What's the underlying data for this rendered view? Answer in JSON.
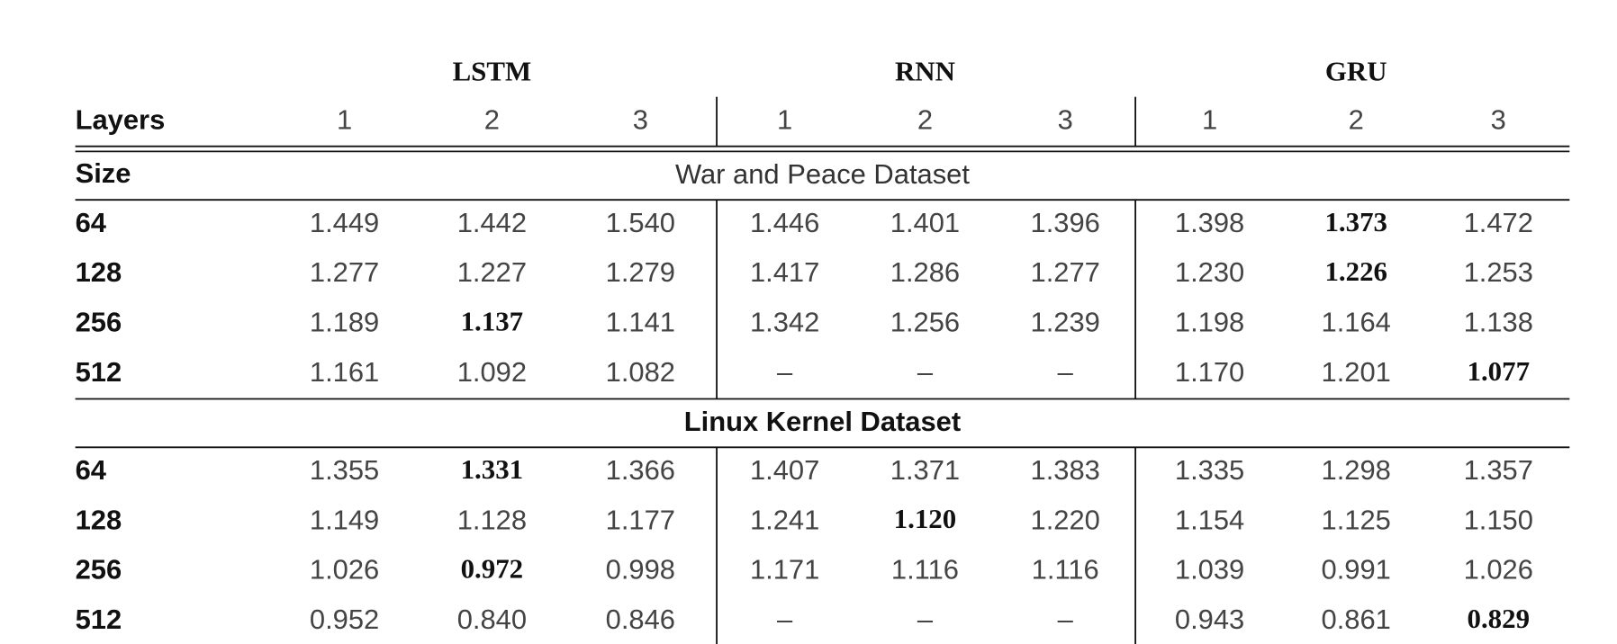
{
  "table": {
    "groups": [
      "LSTM",
      "RNN",
      "GRU"
    ],
    "layers_label": "Layers",
    "layers": [
      "1",
      "2",
      "3",
      "1",
      "2",
      "3",
      "1",
      "2",
      "3"
    ],
    "size_label": "Size",
    "sections": [
      {
        "title": "War and Peace Dataset",
        "title_bold": false,
        "rows": [
          {
            "size": "64",
            "values": [
              "1.449",
              "1.442",
              "1.540",
              "1.446",
              "1.401",
              "1.396",
              "1.398",
              "1.373",
              "1.472"
            ],
            "bold": [
              7
            ]
          },
          {
            "size": "128",
            "values": [
              "1.277",
              "1.227",
              "1.279",
              "1.417",
              "1.286",
              "1.277",
              "1.230",
              "1.226",
              "1.253"
            ],
            "bold": [
              7
            ]
          },
          {
            "size": "256",
            "values": [
              "1.189",
              "1.137",
              "1.141",
              "1.342",
              "1.256",
              "1.239",
              "1.198",
              "1.164",
              "1.138"
            ],
            "bold": [
              1
            ]
          },
          {
            "size": "512",
            "values": [
              "1.161",
              "1.092",
              "1.082",
              "–",
              "–",
              "–",
              "1.170",
              "1.201",
              "1.077"
            ],
            "bold": [
              8
            ]
          }
        ]
      },
      {
        "title": "Linux Kernel Dataset",
        "title_bold": true,
        "rows": [
          {
            "size": "64",
            "values": [
              "1.355",
              "1.331",
              "1.366",
              "1.407",
              "1.371",
              "1.383",
              "1.335",
              "1.298",
              "1.357"
            ],
            "bold": [
              1
            ]
          },
          {
            "size": "128",
            "values": [
              "1.149",
              "1.128",
              "1.177",
              "1.241",
              "1.120",
              "1.220",
              "1.154",
              "1.125",
              "1.150"
            ],
            "bold": [
              4
            ]
          },
          {
            "size": "256",
            "values": [
              "1.026",
              "0.972",
              "0.998",
              "1.171",
              "1.116",
              "1.116",
              "1.039",
              "0.991",
              "1.026"
            ],
            "bold": [
              1
            ]
          },
          {
            "size": "512",
            "values": [
              "0.952",
              "0.840",
              "0.846",
              "–",
              "–",
              "–",
              "0.943",
              "0.861",
              "0.829"
            ],
            "bold": [
              8
            ]
          }
        ]
      }
    ]
  }
}
